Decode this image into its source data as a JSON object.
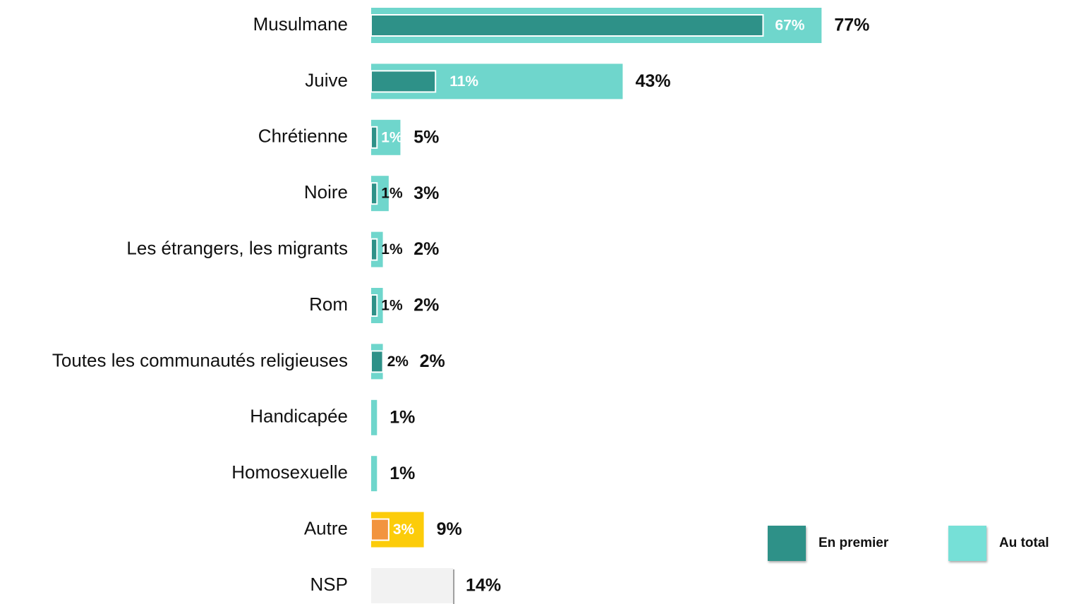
{
  "chart_data": {
    "type": "bar",
    "orientation": "horizontal",
    "categories": [
      "Musulmane",
      "Juive",
      "Chrétienne",
      "Noire",
      "Les étrangers, les migrants",
      "Rom",
      "Toutes les  communautés religieuses",
      "Handicapée",
      "Homosexuelle",
      "Autre",
      "NSP"
    ],
    "series": [
      {
        "name": "En premier",
        "values": [
          67,
          11,
          1,
          1,
          1,
          1,
          2,
          null,
          null,
          3,
          null
        ],
        "labels": [
          "67%",
          "11%",
          "1%",
          "1%",
          "1%",
          "1%",
          "2%",
          "",
          "",
          "3%",
          ""
        ]
      },
      {
        "name": "Au total",
        "values": [
          77,
          43,
          5,
          3,
          2,
          2,
          2,
          1,
          1,
          9,
          14
        ],
        "labels": [
          "77%",
          "43%",
          "5%",
          "3%",
          "2%",
          "2%",
          "2%",
          "1%",
          "1%",
          "9%",
          "14%"
        ]
      }
    ],
    "bar_colors": {
      "default_first": "#2e9188",
      "default_total": "#6fd6cc",
      "autre_first": "#f2943f",
      "autre_total": "#fccc0a",
      "nsp_total": "#f2f2f2"
    },
    "legend_placement": "bottom-right",
    "grid": false
  },
  "legend": {
    "first_label": "En premier",
    "first_color": "#2e9188",
    "total_label": "Au total",
    "total_color": "#76e0d7"
  }
}
